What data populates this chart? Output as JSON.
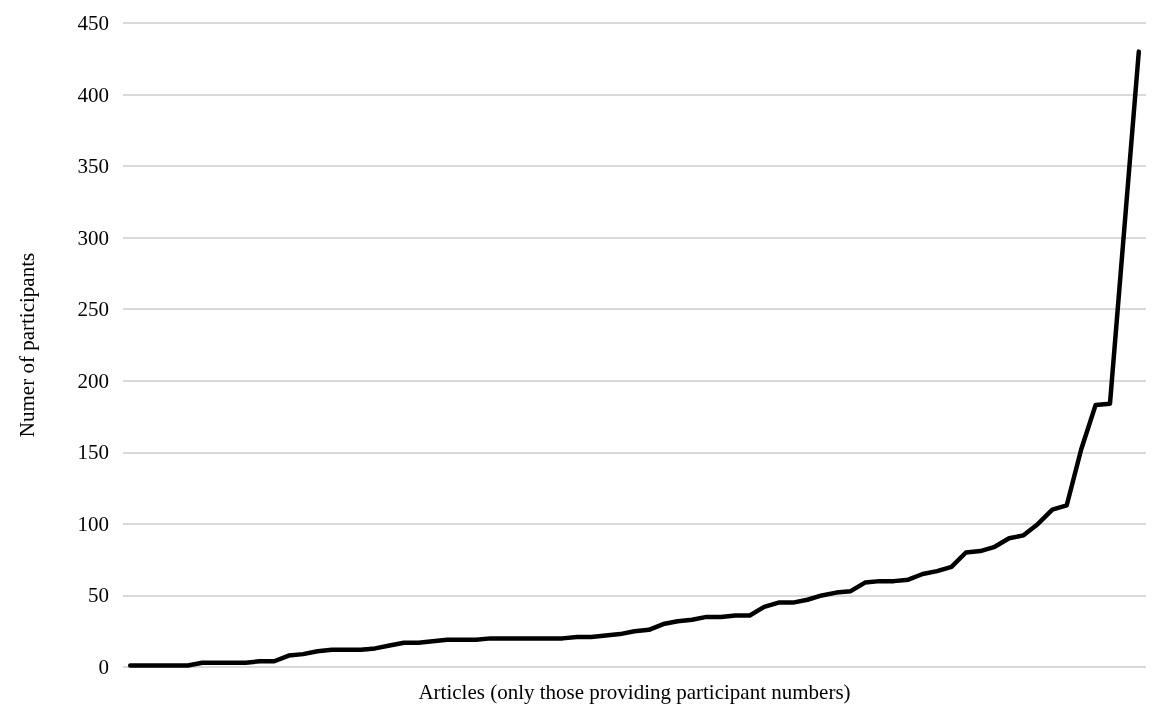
{
  "chart_data": {
    "type": "line",
    "xlabel": "Articles (only those providing participant numbers)",
    "ylabel": "Numer of participants",
    "categories": [
      null,
      null,
      null,
      null,
      null,
      null,
      null,
      null,
      null,
      null,
      null,
      null,
      null,
      null,
      null,
      null,
      null,
      null,
      null,
      null,
      null,
      null,
      null,
      null,
      null,
      null,
      null,
      null,
      null,
      null,
      null,
      null,
      null,
      null,
      null,
      null,
      null,
      null,
      null,
      null,
      null,
      null,
      null,
      null,
      null,
      null,
      null,
      null,
      null,
      null,
      null,
      null,
      null,
      null,
      null,
      null,
      null,
      null,
      null,
      null,
      null,
      null,
      null,
      null,
      null,
      null,
      null,
      null,
      null,
      null,
      null
    ],
    "series": [
      {
        "color": "#000000",
        "values": [
          1,
          1,
          1,
          1,
          1,
          3,
          3,
          3,
          3,
          4,
          4,
          8,
          9,
          11,
          12,
          12,
          12,
          13,
          15,
          17,
          17,
          18,
          19,
          19,
          19,
          20,
          20,
          20,
          20,
          20,
          20,
          21,
          21,
          22,
          23,
          25,
          26,
          30,
          32,
          33,
          35,
          35,
          36,
          36,
          42,
          45,
          45,
          47,
          50,
          52,
          53,
          59,
          60,
          60,
          61,
          65,
          67,
          70,
          80,
          81,
          84,
          90,
          92,
          100,
          110,
          113,
          152,
          183,
          184,
          307,
          430
        ]
      }
    ],
    "ylim": [
      0,
      450
    ],
    "yticks": [
      0,
      50,
      100,
      150,
      200,
      250,
      300,
      350,
      400,
      450
    ],
    "grid": "y",
    "marker": "none",
    "line_style": "solid",
    "tick_labels": "y"
  }
}
